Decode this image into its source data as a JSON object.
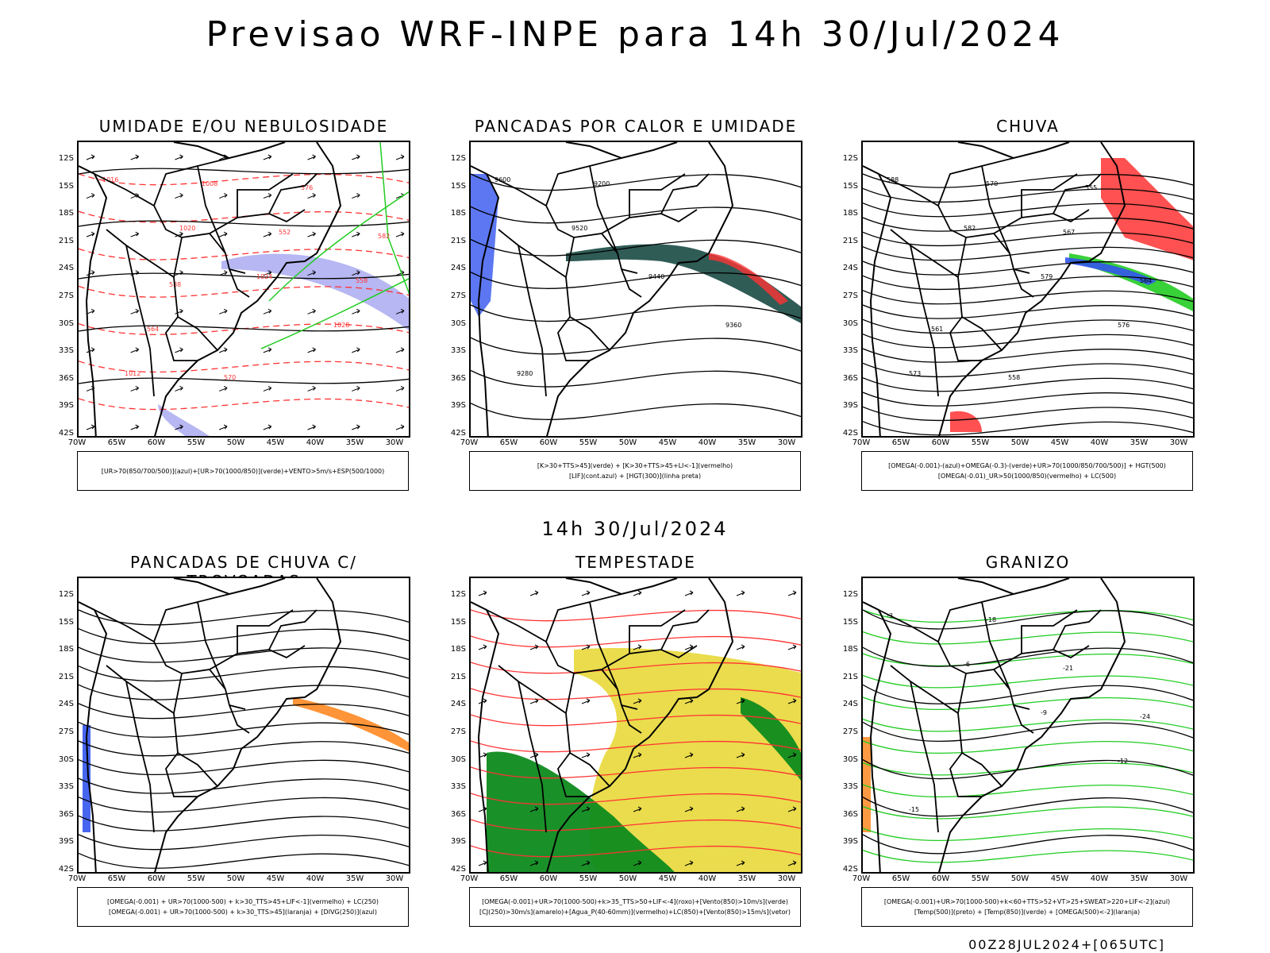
{
  "title": "Previsao WRF-INPE  para 14h 30/Jul/2024",
  "subtitle": "14h 30/Jul/2024",
  "footer": "00Z28JUL2024+[065UTC]",
  "lat_labels": [
    "12S",
    "15S",
    "18S",
    "21S",
    "24S",
    "27S",
    "30S",
    "33S",
    "36S",
    "39S",
    "42S"
  ],
  "lon_labels": [
    "70W",
    "65W",
    "60W",
    "55W",
    "50W",
    "45W",
    "40W",
    "35W",
    "30W"
  ],
  "colors": {
    "blue": "#3355ee",
    "green": "#22cc22",
    "red": "#ff3333",
    "orange": "#ff8822",
    "yellow": "#e8d838",
    "darkgreen": "#0e8a1e",
    "teal": "#1a4a44",
    "lavender": "#9999ee"
  },
  "panels": [
    {
      "title": "UMIDADE E/OU NEBULOSIDADE",
      "legend": [
        "[UR>70(850/700/500)](azul)+[UR>70(1000/850)](verde)+VENTO>5m/s+ESP(500/1000)"
      ],
      "contour_labels": [
        "1016",
        "1020",
        "1024",
        "1028",
        "1012",
        "1008",
        "552",
        "558",
        "564",
        "570",
        "576",
        "582",
        "588"
      ]
    },
    {
      "title": "PANCADAS POR CALOR E UMIDADE",
      "legend": [
        "[K>30+TTS>45](verde) + [K>30+TTS>45+LI<-1](vermelho)",
        "[LIF](cont.azul) + [HGT(300)](linha preta)"
      ],
      "contour_labels": [
        "9600",
        "9520",
        "9440",
        "9360",
        "9280",
        "9200"
      ]
    },
    {
      "title": "CHUVA",
      "legend": [
        "[OMEGA(-0.001)-(azul)+OMEGA(-0.3)-(verde)+UR>70(1000/850/700/500)] + HGT(500)",
        "[OMEGA(-0.01)_UR>50(1000/850)(vermelho) + LC(500)"
      ],
      "contour_labels": [
        "588",
        "582",
        "579",
        "576",
        "573",
        "570",
        "567",
        "564",
        "561",
        "558",
        "555"
      ]
    },
    {
      "title": "PANCADAS DE CHUVA C/ TROVOADAS",
      "legend": [
        "[OMEGA(-0.001) + UR>70(1000-500) + k>30_TTS>45+LIF<-1](vermelho) + LC(250)",
        "[OMEGA(-0.001) + UR>70(1000-500) + k>30_TTS>45](laranja) + [DIVG(250)](azul)"
      ],
      "contour_labels": []
    },
    {
      "title": "TEMPESTADE",
      "legend": [
        "[OMEGA(-0.001)+UR>70(1000-500)+k>35_TTS>50+LIF<-4](roxo)+[Vento(850)>10m/s](verde)",
        "[CJ(250)>30m/s](amarelo)+[Agua_P(40-60mm)](vermelho)+LC(850)+[Vento(850)>15m/s](vetor)"
      ],
      "contour_labels": []
    },
    {
      "title": "GRANIZO",
      "legend": [
        "[OMEGA(-0.001)+UR>70(1000-500)+k<60+TTS>52+VT>25+SWEAT>220+LIF<-2](azul)",
        "[Temp(500)](preto) + [Temp(850)](verde) + [OMEGA(500)<-2](laranja)"
      ],
      "contour_labels": [
        "-3",
        "-6",
        "-9",
        "-12",
        "-15",
        "-18",
        "-21",
        "-24"
      ]
    }
  ]
}
